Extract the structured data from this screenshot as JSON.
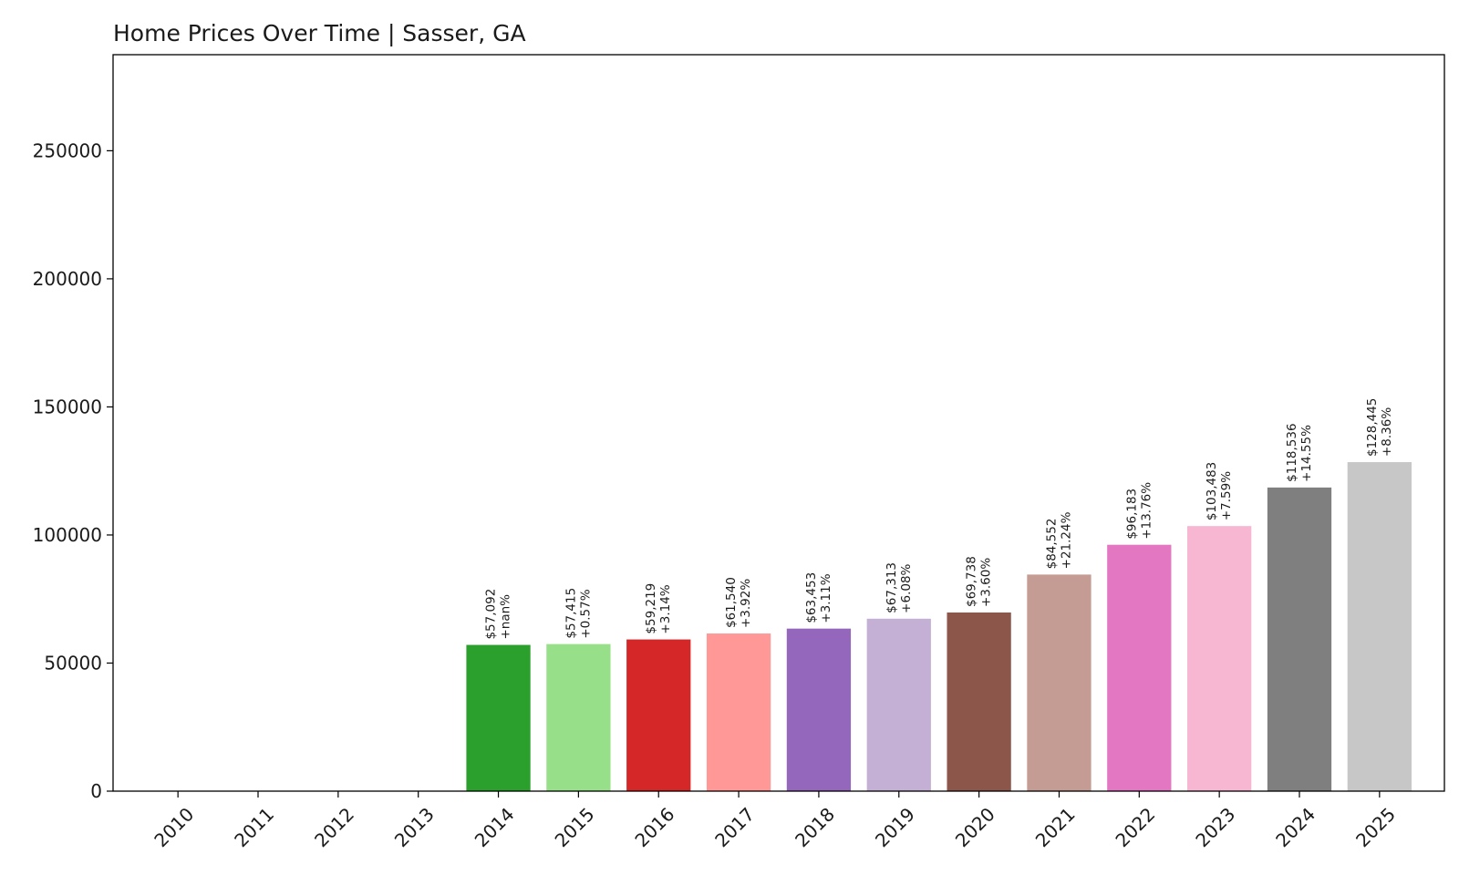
{
  "chart_data": {
    "type": "bar",
    "title": "Home Prices Over Time | Sasser, GA",
    "xlabel": "",
    "ylabel": "",
    "ylim": [
      0,
      287500
    ],
    "yticks": [
      0,
      50000,
      100000,
      150000,
      200000,
      250000
    ],
    "ytick_labels": [
      "0",
      "50000",
      "100000",
      "150000",
      "200000",
      "250000"
    ],
    "categories": [
      "2010",
      "2011",
      "2012",
      "2013",
      "2014",
      "2015",
      "2016",
      "2017",
      "2018",
      "2019",
      "2020",
      "2021",
      "2022",
      "2023",
      "2024",
      "2025"
    ],
    "values": [
      0,
      0,
      0,
      0,
      57092,
      57415,
      59219,
      61540,
      63453,
      67313,
      69738,
      84552,
      96183,
      103483,
      118536,
      128445
    ],
    "value_labels": [
      "",
      "",
      "",
      "",
      "$57,092",
      "$57,415",
      "$59,219",
      "$61,540",
      "$63,453",
      "$67,313",
      "$69,738",
      "$84,552",
      "$96,183",
      "$103,483",
      "$118,536",
      "$128,445"
    ],
    "change_labels": [
      "",
      "",
      "",
      "",
      "+nan%",
      "+0.57%",
      "+3.14%",
      "+3.92%",
      "+3.11%",
      "+6.08%",
      "+3.60%",
      "+21.24%",
      "+13.76%",
      "+7.59%",
      "+14.55%",
      "+8.36%"
    ],
    "colors": [
      "#1f77b4",
      "#aec7e8",
      "#ff7f0e",
      "#ffbb78",
      "#2ca02c",
      "#98df8a",
      "#d62728",
      "#ff9896",
      "#9467bd",
      "#c5b0d5",
      "#8c564b",
      "#c49c94",
      "#e377c2",
      "#f7b6d2",
      "#7f7f7f",
      "#c7c7c7"
    ],
    "grid": false,
    "legend": "none"
  }
}
